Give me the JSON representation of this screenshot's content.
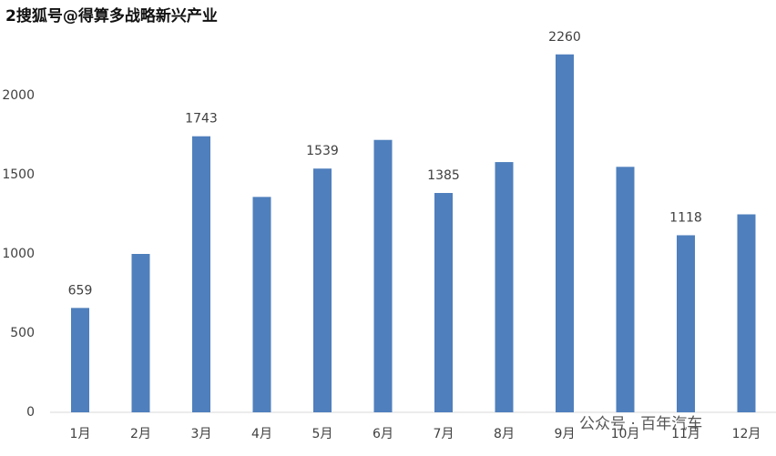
{
  "chart_data": {
    "type": "bar",
    "watermark": "2搜狐号@得算多战略新兴产业",
    "source_mark": "公众号 · 百年汽车",
    "categories": [
      "1月",
      "2月",
      "3月",
      "4月",
      "5月",
      "6月",
      "7月",
      "8月",
      "9月",
      "10月",
      "11月",
      "12月"
    ],
    "values": [
      659,
      1000,
      1743,
      1360,
      1539,
      1720,
      1385,
      1580,
      2260,
      1550,
      1118,
      1250
    ],
    "value_labels": [
      "659",
      null,
      "1743",
      null,
      "1539",
      null,
      "1385",
      null,
      "2260",
      null,
      "1118",
      null
    ],
    "color": "#4f7fbd",
    "ylim": [
      0,
      2500
    ],
    "yticks": [
      0,
      500,
      1000,
      1500,
      2000
    ],
    "grid": false
  }
}
